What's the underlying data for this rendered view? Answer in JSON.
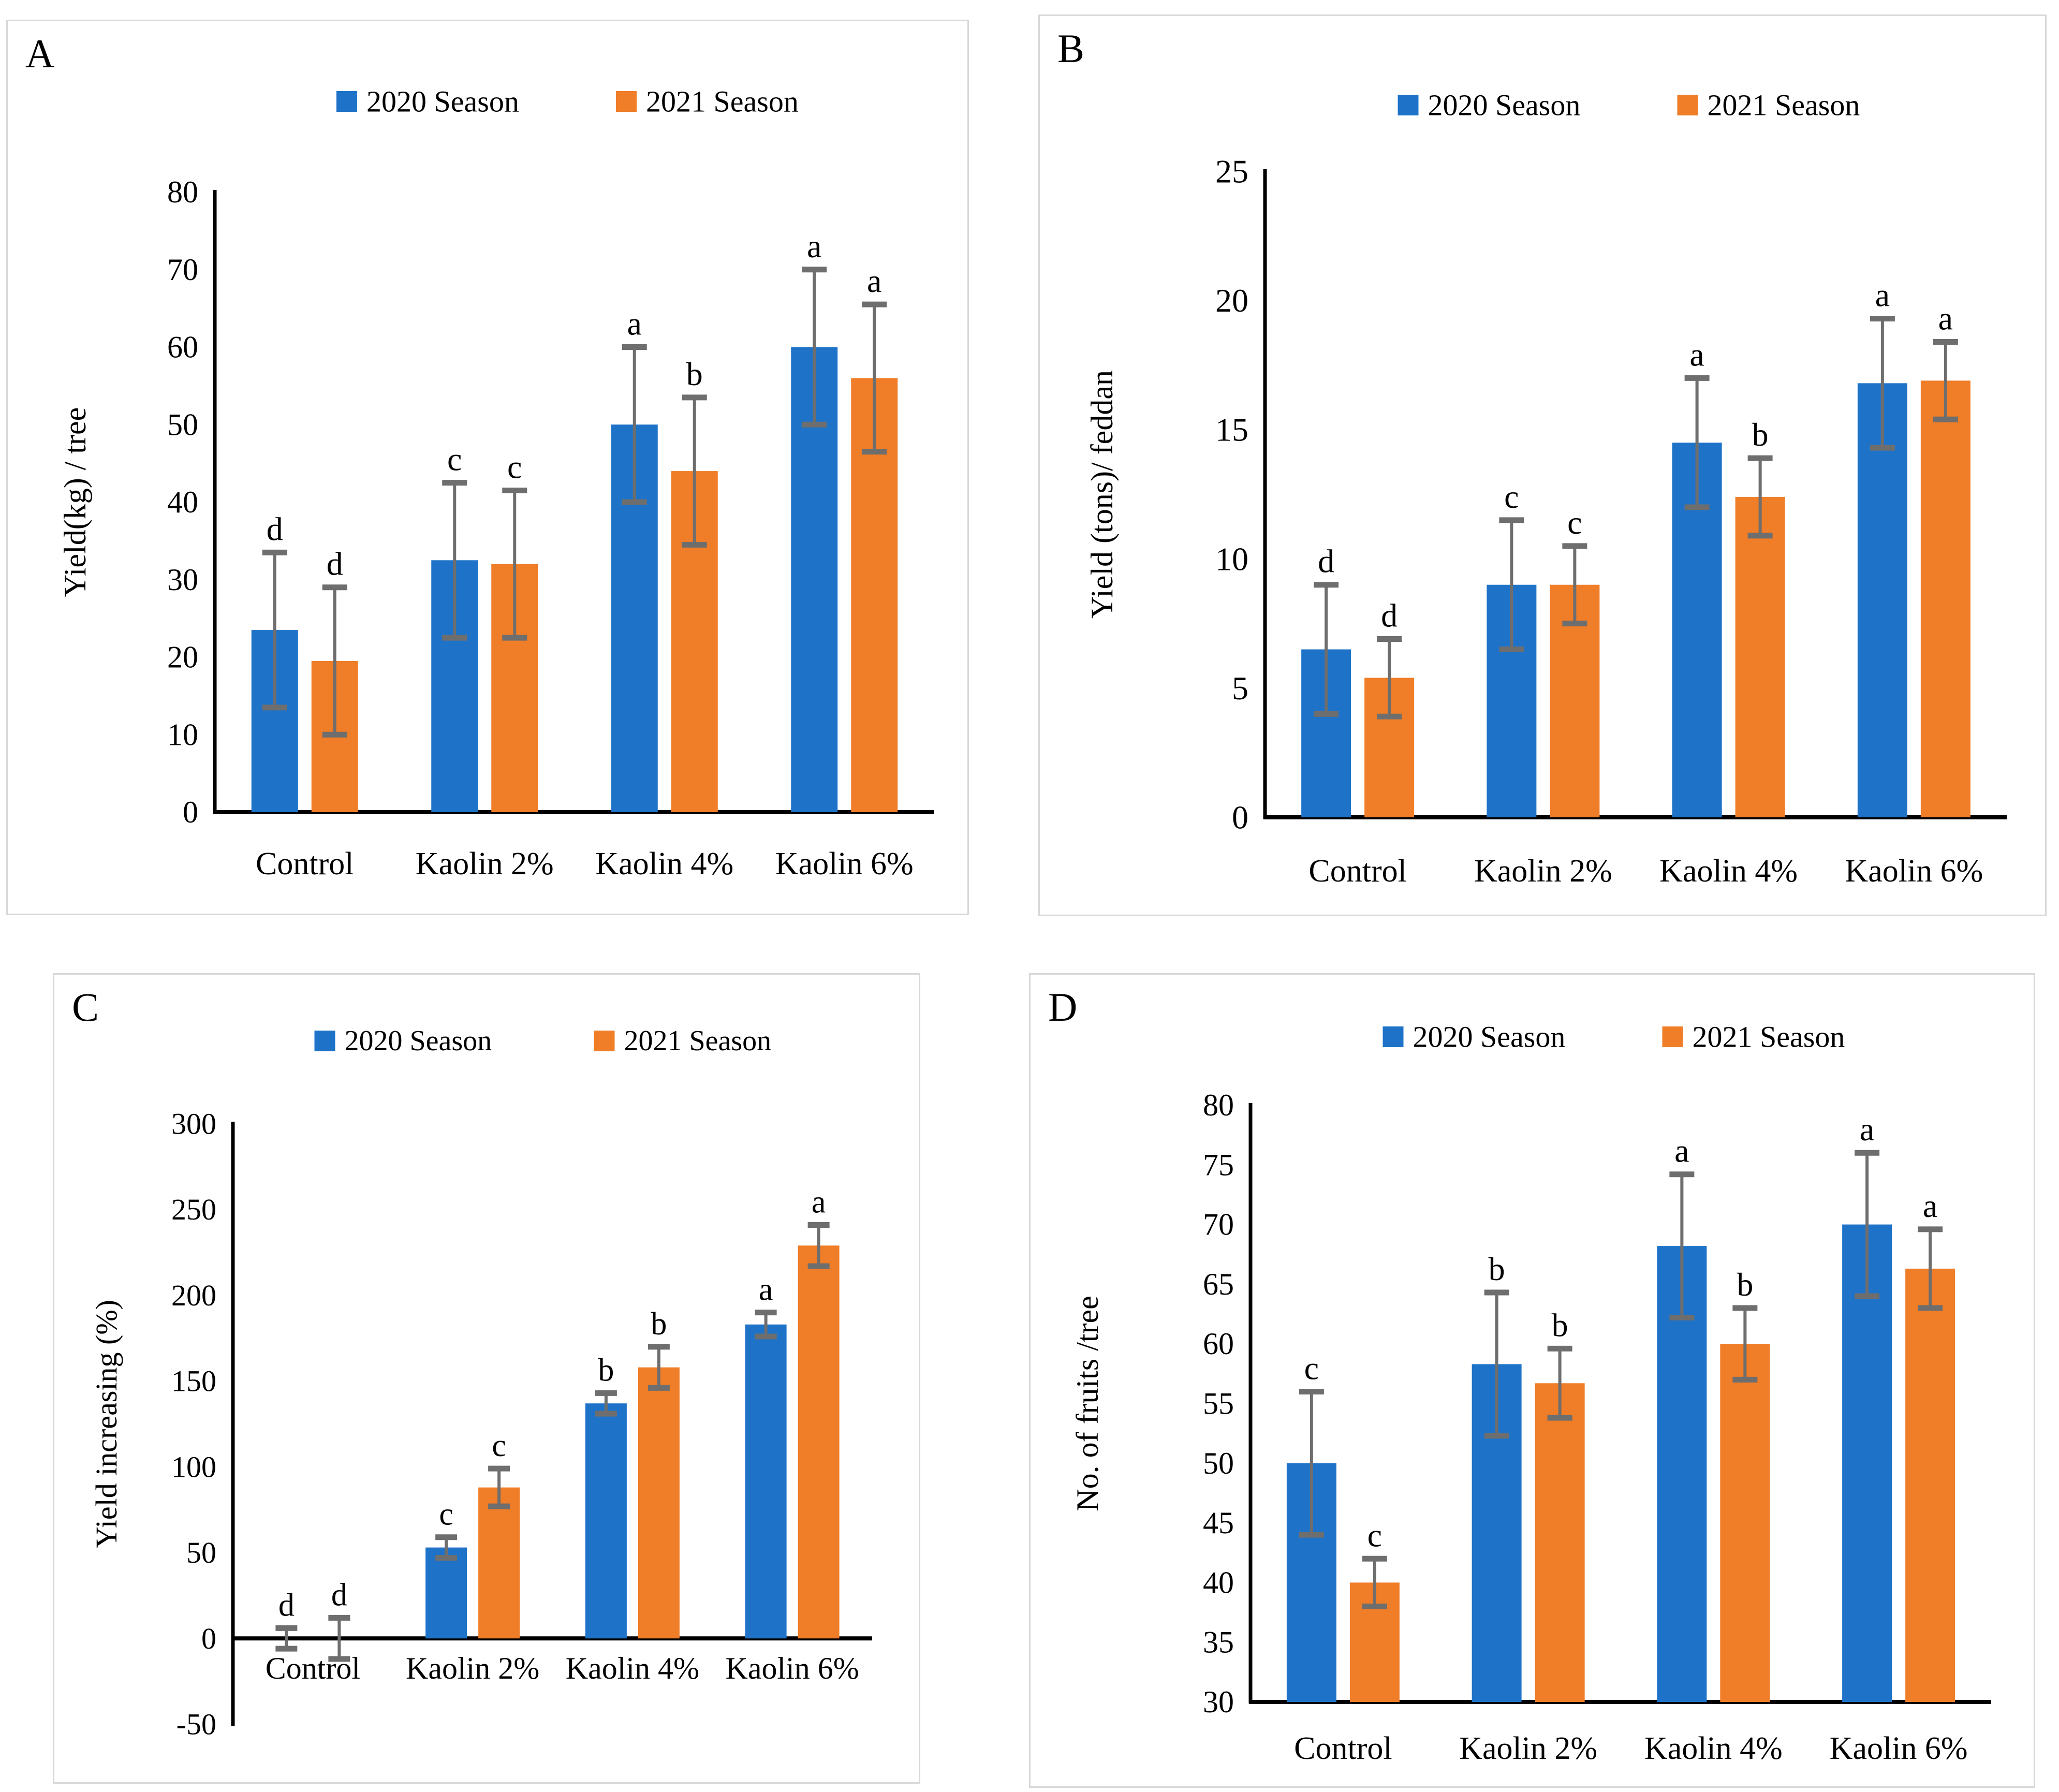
{
  "figure": {
    "background_color": "#ffffff",
    "panel_border_color": "#d8d8d8",
    "axis_color": "#000000",
    "error_bar_color": "#6e6e6e",
    "series_colors": {
      "season_2020": "#1e73c8",
      "season_2021": "#f07d27"
    }
  },
  "chart_data": [
    {
      "panel_label": "A",
      "type": "bar",
      "title": "",
      "xlabel": "",
      "ylabel": "Yield(kg) / tree",
      "categories": [
        "Control",
        "Kaolin 2%",
        "Kaolin 4%",
        "Kaolin 6%"
      ],
      "ylim": [
        0,
        80
      ],
      "ytick_step": 10,
      "yticks": [
        0,
        10,
        20,
        30,
        40,
        50,
        60,
        70,
        80
      ],
      "x_axis_at": 0,
      "bar_base": 0,
      "grid": false,
      "legend_position": "top",
      "series": [
        {
          "name": "2020 Season",
          "color": "#1e73c8",
          "values": [
            23.5,
            32.5,
            50,
            60
          ],
          "errors": [
            10,
            10,
            10,
            10
          ],
          "sig_letters": [
            "d",
            "c",
            "a",
            "a"
          ]
        },
        {
          "name": "2021 Season",
          "color": "#f07d27",
          "values": [
            19.5,
            32,
            44,
            56
          ],
          "errors": [
            9.5,
            9.5,
            9.5,
            9.5
          ],
          "sig_letters": [
            "d",
            "c",
            "b",
            "a"
          ]
        }
      ]
    },
    {
      "panel_label": "B",
      "type": "bar",
      "title": "",
      "xlabel": "",
      "ylabel": "Yield (tons)/ feddan",
      "categories": [
        "Control",
        "Kaolin 2%",
        "Kaolin 4%",
        "Kaolin 6%"
      ],
      "ylim": [
        0,
        25
      ],
      "ytick_step": 5,
      "yticks": [
        0,
        5,
        10,
        15,
        20,
        25
      ],
      "x_axis_at": 0,
      "bar_base": 0,
      "grid": false,
      "legend_position": "top",
      "series": [
        {
          "name": "2020 Season",
          "color": "#1e73c8",
          "values": [
            6.5,
            9.0,
            14.5,
            16.8
          ],
          "errors": [
            2.5,
            2.5,
            2.5,
            2.5
          ],
          "sig_letters": [
            "d",
            "c",
            "a",
            "a"
          ]
        },
        {
          "name": "2021 Season",
          "color": "#f07d27",
          "values": [
            5.4,
            9.0,
            12.4,
            16.9
          ],
          "errors": [
            1.5,
            1.5,
            1.5,
            1.5
          ],
          "sig_letters": [
            "d",
            "c",
            "b",
            "a"
          ]
        }
      ]
    },
    {
      "panel_label": "C",
      "type": "bar",
      "title": "",
      "xlabel": "",
      "ylabel": "Yield increasing (%)",
      "categories": [
        "Control",
        "Kaolin 2%",
        "Kaolin 4%",
        "Kaolin 6%"
      ],
      "ylim": [
        -50,
        300
      ],
      "ytick_step": 50,
      "yticks": [
        -50,
        0,
        50,
        100,
        150,
        200,
        250,
        300
      ],
      "x_axis_at": 0,
      "bar_base": 0,
      "grid": false,
      "legend_position": "top",
      "series": [
        {
          "name": "2020 Season",
          "color": "#1e73c8",
          "values": [
            0,
            53,
            137,
            183
          ],
          "errors": [
            6,
            6,
            6,
            7
          ],
          "sig_letters": [
            "d",
            "c",
            "b",
            "a"
          ]
        },
        {
          "name": "2021 Season",
          "color": "#f07d27",
          "values": [
            0,
            88,
            158,
            229
          ],
          "errors": [
            12,
            11,
            12,
            12
          ],
          "sig_letters": [
            "d",
            "c",
            "b",
            "a"
          ]
        }
      ]
    },
    {
      "panel_label": "D",
      "type": "bar",
      "title": "",
      "xlabel": "",
      "ylabel": "No. of fruits /tree",
      "categories": [
        "Control",
        "Kaolin  2%",
        "Kaolin 4%",
        "Kaolin 6%"
      ],
      "ylim": [
        30,
        80
      ],
      "ytick_step": 5,
      "yticks": [
        30,
        35,
        40,
        45,
        50,
        55,
        60,
        65,
        70,
        75,
        80
      ],
      "x_axis_at": 30,
      "bar_base": 30,
      "grid": false,
      "legend_position": "top",
      "series": [
        {
          "name": "2020 Season",
          "color": "#1e73c8",
          "values": [
            50,
            58.3,
            68.2,
            70
          ],
          "errors": [
            6,
            6,
            6,
            6
          ],
          "sig_letters": [
            "c",
            "b",
            "a",
            "a"
          ]
        },
        {
          "name": "2021 Season",
          "color": "#f07d27",
          "values": [
            40,
            56.7,
            60,
            66.3
          ],
          "errors": [
            2,
            2.9,
            3,
            3.3
          ],
          "sig_letters": [
            "c",
            "b",
            "b",
            "a"
          ]
        }
      ]
    }
  ]
}
